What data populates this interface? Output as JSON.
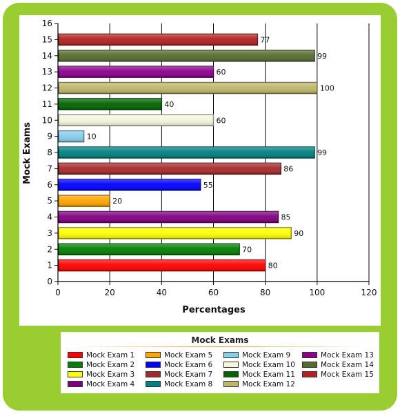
{
  "chart_data": {
    "type": "bar",
    "orientation": "horizontal",
    "xlabel": "Percentages",
    "ylabel": "Mock Exams",
    "xlim": [
      0,
      120
    ],
    "ylim": [
      0,
      16
    ],
    "x_ticks": [
      "0",
      "20",
      "40",
      "60",
      "80",
      "100",
      "120"
    ],
    "y_ticks": [
      "0",
      "1",
      "2",
      "3",
      "4",
      "5",
      "6",
      "7",
      "8",
      "9",
      "10",
      "11",
      "12",
      "13",
      "14",
      "15",
      "16"
    ],
    "grid": "vertical gridlines",
    "series": [
      {
        "name": "Mock Exam 1",
        "y": 1,
        "value": 80,
        "color": "#FF0000"
      },
      {
        "name": "Mock Exam 2",
        "y": 2,
        "value": 70,
        "color": "#008000"
      },
      {
        "name": "Mock Exam 3",
        "y": 3,
        "value": 90,
        "color": "#FFFF00"
      },
      {
        "name": "Mock Exam 4",
        "y": 4,
        "value": 85,
        "color": "#800080"
      },
      {
        "name": "Mock Exam 5",
        "y": 5,
        "value": 20,
        "color": "#FFA500"
      },
      {
        "name": "Mock Exam 6",
        "y": 6,
        "value": 55,
        "color": "#0000FF"
      },
      {
        "name": "Mock Exam 7",
        "y": 7,
        "value": 86,
        "color": "#A52A2A"
      },
      {
        "name": "Mock Exam 8",
        "y": 8,
        "value": 99,
        "color": "#008080"
      },
      {
        "name": "Mock Exam 9",
        "y": 9,
        "value": 10,
        "color": "#87CEEB"
      },
      {
        "name": "Mock Exam 10",
        "y": 10,
        "value": 60,
        "color": "#F5F5DC"
      },
      {
        "name": "Mock Exam 11",
        "y": 11,
        "value": 40,
        "color": "#006400"
      },
      {
        "name": "Mock Exam 12",
        "y": 12,
        "value": 100,
        "color": "#BDB76B"
      },
      {
        "name": "Mock Exam 13",
        "y": 13,
        "value": 60,
        "color": "#8B008B"
      },
      {
        "name": "Mock Exam 14",
        "y": 14,
        "value": 99,
        "color": "#556B2F"
      },
      {
        "name": "Mock Exam 15",
        "y": 15,
        "value": 77,
        "color": "#B22222"
      }
    ],
    "legend": {
      "title": "Mock Exams",
      "placement": "bottom",
      "columns": [
        [
          "Mock Exam 1",
          "Mock Exam 2",
          "Mock Exam 3",
          "Mock Exam 4"
        ],
        [
          "Mock Exam 5",
          "Mock Exam 6",
          "Mock Exam 7",
          "Mock Exam 8"
        ],
        [
          "Mock Exam 9",
          "Mock Exam 10",
          "Mock Exam 11",
          "Mock Exam 12"
        ],
        [
          "Mock Exam 13",
          "Mock Exam 14",
          "Mock Exam 15"
        ]
      ]
    },
    "colors": {
      "frame": "#9ACD32"
    }
  }
}
